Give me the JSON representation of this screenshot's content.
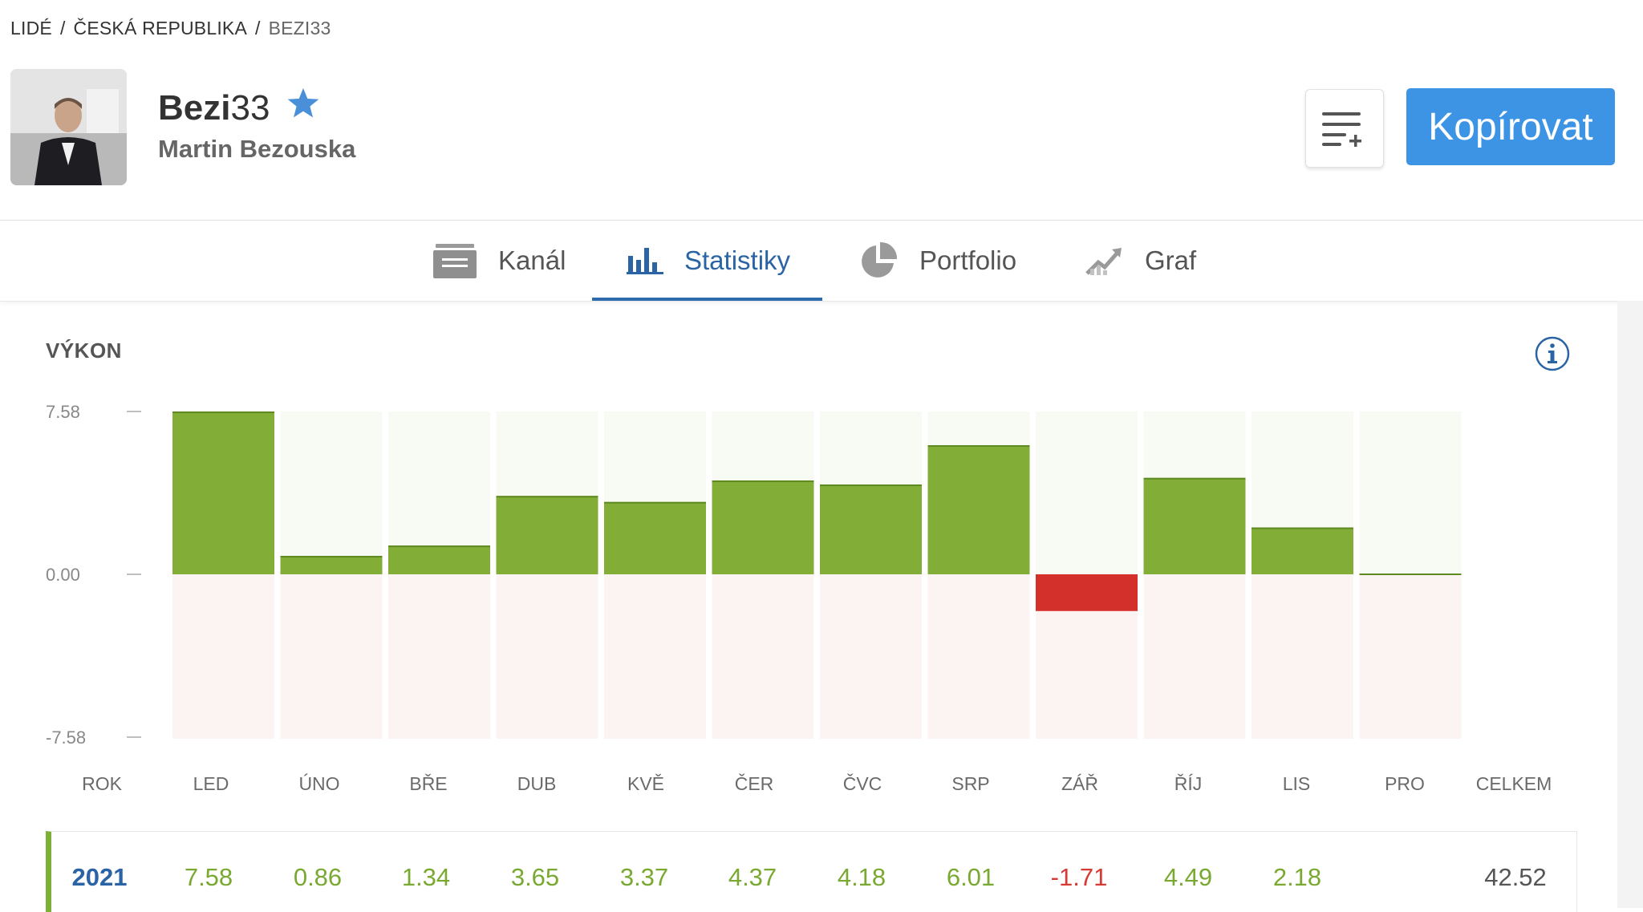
{
  "breadcrumb": {
    "items": [
      "LIDÉ",
      "ČESKÁ REPUBLIKA"
    ],
    "current": "BEZI33",
    "separator": "/"
  },
  "profile": {
    "username_bold": "Bezi",
    "username_rest": "33",
    "full_name": "Martin Bezouska",
    "star_icon": "star-icon",
    "star_color": "#4a90d9"
  },
  "actions": {
    "watchlist_icon": "list-add-icon",
    "copy_label": "Kopírovat",
    "copy_color": "#3d94e4"
  },
  "tabs": [
    {
      "label": "Kanál",
      "icon": "feed-icon",
      "active": false
    },
    {
      "label": "Statistiky",
      "icon": "bar-chart-icon",
      "active": true
    },
    {
      "label": "Portfolio",
      "icon": "pie-chart-icon",
      "active": false
    },
    {
      "label": "Graf",
      "icon": "trend-chart-icon",
      "active": false
    }
  ],
  "performance": {
    "title": "VÝKON",
    "info_icon": "info-icon"
  },
  "chart_data": {
    "type": "bar",
    "categories": [
      "LED",
      "ÚNO",
      "BŘE",
      "DUB",
      "KVĚ",
      "ČER",
      "ČVC",
      "SRP",
      "ZÁŘ",
      "ŘÍJ",
      "LIS",
      "PRO"
    ],
    "values": [
      7.58,
      0.86,
      1.34,
      3.65,
      3.37,
      4.37,
      4.18,
      6.01,
      -1.71,
      4.49,
      2.18,
      0
    ],
    "ylim": [
      -7.58,
      7.58
    ],
    "ytick_labels": [
      "7.58",
      "0.00",
      "-7.58"
    ],
    "positive_color": "#82ae38",
    "negative_color": "#d3302c",
    "positive_bg": "#f8faf4",
    "negative_bg": "#fbf4f3"
  },
  "table": {
    "headers": [
      "ROK",
      "LED",
      "ÚNO",
      "BŘE",
      "DUB",
      "KVĚ",
      "ČER",
      "ČVC",
      "SRP",
      "ZÁŘ",
      "ŘÍJ",
      "LIS",
      "PRO",
      "CELKEM"
    ],
    "rows": [
      {
        "year": "2021",
        "values": [
          "7.58",
          "0.86",
          "1.34",
          "3.65",
          "3.37",
          "4.37",
          "4.18",
          "6.01",
          "-1.71",
          "4.49",
          "2.18",
          "",
          "42.52"
        ]
      }
    ]
  }
}
